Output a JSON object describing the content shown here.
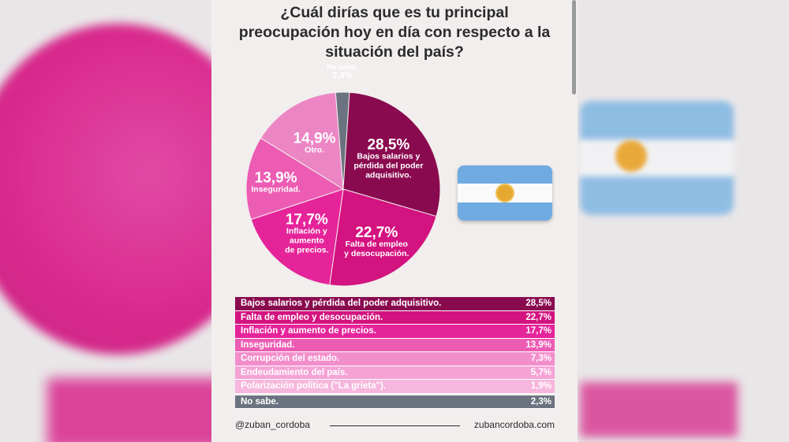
{
  "title_lines": [
    "¿Cuál dirías que es tu principal",
    "preocupación hoy en día con respecto a la",
    "situación del país?"
  ],
  "chart_data": {
    "type": "pie",
    "slices": [
      {
        "label": "No sabe.",
        "value": 2.3,
        "value_label": "2,3%",
        "color": "#6c7380"
      },
      {
        "label": "Bajos salarios y pérdida del poder adquisitivo.",
        "value": 28.5,
        "value_label": "28,5%",
        "color": "#8a0a4f"
      },
      {
        "label": "Falta de empleo y desocupación.",
        "value": 22.7,
        "value_label": "22,7%",
        "color": "#d3137f"
      },
      {
        "label": "Inflación y aumento de precios.",
        "value": 17.7,
        "value_label": "17,7%",
        "color": "#e6249a"
      },
      {
        "label": "Inseguridad.",
        "value": 13.9,
        "value_label": "13,9%",
        "color": "#ec5cb3"
      },
      {
        "label": "Otro.",
        "value": 14.9,
        "value_label": "14,9%",
        "color": "#ec85c4"
      }
    ],
    "pie_labels": [
      {
        "pct": "2,3%",
        "text": [
          "No sabe."
        ]
      },
      {
        "pct": "28,5%",
        "text": [
          "Bajos salarios y",
          "pérdida del poder",
          "adquisitivo."
        ]
      },
      {
        "pct": "22,7%",
        "text": [
          "Falta de empleo",
          "y desocupación."
        ]
      },
      {
        "pct": "17,7%",
        "text": [
          "Inflación y",
          "aumento",
          "de precios."
        ]
      },
      {
        "pct": "13,9%",
        "text": [
          "Inseguridad."
        ]
      },
      {
        "pct": "14,9%",
        "text": [
          "Otro."
        ]
      }
    ]
  },
  "table": [
    {
      "label": "Bajos salarios y pérdida del poder adquisitivo.",
      "value": "28,5%",
      "bg": "#8a0a4f",
      "fg": "#ffffff"
    },
    {
      "label": "Falta de empleo y desocupación.",
      "value": "22,7%",
      "bg": "#d3137f",
      "fg": "#ffffff"
    },
    {
      "label": "Inflación y aumento de precios.",
      "value": "17,7%",
      "bg": "#e6249a",
      "fg": "#ffffff"
    },
    {
      "label": "Inseguridad.",
      "value": "13,9%",
      "bg": "#ec5cb3",
      "fg": "#ffffff"
    },
    {
      "label": "Corrupción del estado.",
      "value": "7,3%",
      "bg": "#f28fcb",
      "fg": "#ffffff"
    },
    {
      "label": "Endeudamiento del país.",
      "value": "5,7%",
      "bg": "#f5a3d5",
      "fg": "#ffffff"
    },
    {
      "label": "Polarización política (\"La grieta\").",
      "value": "1,9%",
      "bg": "#f7b6dd",
      "fg": "#ffffff"
    },
    {
      "label": "No sabe.",
      "value": "2,3%",
      "bg": "#6c7380",
      "fg": "#ffffff"
    }
  ],
  "footer": {
    "handle": "@zuban_cordoba",
    "site": "zubancordoba.com"
  }
}
